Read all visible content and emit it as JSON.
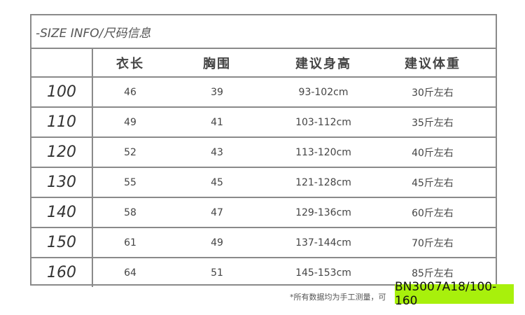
{
  "title": "-SIZE INFO/尺码信息",
  "headers": [
    "",
    "衣长",
    "胸围",
    "建议身高",
    "建议体重"
  ],
  "rows": [
    [
      "100",
      "46",
      "39",
      "93-102cm",
      "30斤左右"
    ],
    [
      "110",
      "49",
      "41",
      "103-112cm",
      "35斤左右"
    ],
    [
      "120",
      "52",
      "43",
      "113-120cm",
      "40斤左右"
    ],
    [
      "130",
      "55",
      "45",
      "121-128cm",
      "45斤左右"
    ],
    [
      "140",
      "58",
      "47",
      "129-136cm",
      "60斤左右"
    ],
    [
      "150",
      "61",
      "49",
      "137-144cm",
      "70斤左右"
    ],
    [
      "160",
      "64",
      "51",
      "145-153cm",
      "85斤左右"
    ]
  ],
  "note": "*所有数据均为手工测量，可",
  "product_code": "BN3007A18/100-160",
  "colors": {
    "code_bg": "#a8f00c",
    "grid": "#8a8a8a"
  }
}
